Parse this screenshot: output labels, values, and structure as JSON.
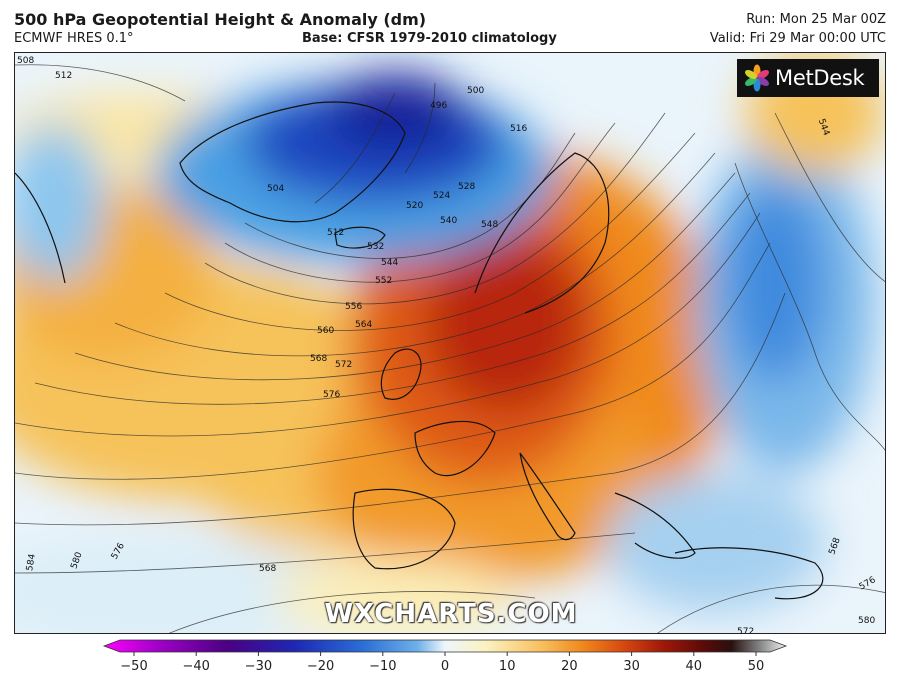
{
  "header": {
    "title": "500 hPa Geopotential Height & Anomaly (dm)",
    "model": "ECMWF HRES 0.1°",
    "base": "Base: CFSR 1979-2010 climatology",
    "run": "Run: Mon 25 Mar 00Z",
    "valid": "Valid: Fri 29 Mar 00:00 UTC"
  },
  "logo": {
    "text": "MetDesk"
  },
  "watermark": "WXCHARTS.COM",
  "contour_labels": [
    "508",
    "512",
    "496",
    "500",
    "516",
    "504",
    "520",
    "524",
    "528",
    "512",
    "540",
    "532",
    "548",
    "544",
    "552",
    "556",
    "564",
    "560",
    "568",
    "572",
    "576",
    "584",
    "580",
    "576",
    "568",
    "544",
    "568",
    "576",
    "580",
    "572"
  ],
  "colorbar": {
    "ticks": [
      "−50",
      "−40",
      "−30",
      "−20",
      "−10",
      "0",
      "10",
      "20",
      "30",
      "40",
      "50"
    ],
    "colors": [
      "#ff00ff",
      "#a000c8",
      "#4b0082",
      "#1e28b4",
      "#2a6fd6",
      "#6fb0ea",
      "#d8ecf8",
      "#fbf2c0",
      "#f8c060",
      "#f08a1e",
      "#d84a10",
      "#a01808",
      "#5a0a08",
      "#2a1010",
      "#808080",
      "#f2f2f2"
    ]
  }
}
